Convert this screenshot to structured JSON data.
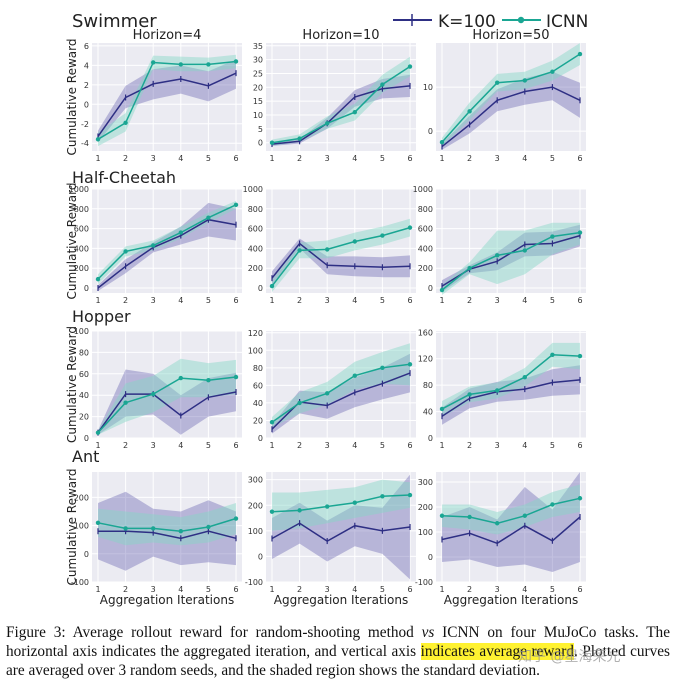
{
  "figure": {
    "legend": [
      "K=100",
      "ICNN"
    ],
    "colors": {
      "k100": "#2e2f84",
      "icnn": "#1aa693",
      "k100_fill": "#6f6bb4",
      "icnn_fill": "#86d8c6",
      "panel_bg": "#ebebf2",
      "grid": "#ffffff"
    },
    "ylabel": "Cumulative Reward",
    "xlabel": "Aggregation Iterations"
  },
  "caption": {
    "part1": "Figure 3: Average rollout reward for random-shooting method ",
    "vs": "vs",
    "part2": " ICNN on four MuJoCo tasks. The horizontal axis indicates the aggregated iteration, and vertical axis ",
    "highlight": "indicates average reward",
    "part3": ". Plotted curves are averaged over 3 random seeds, and the shaded region shows the standard deviation."
  },
  "watermark": "知乎 @星海荣光",
  "chart_data": [
    {
      "type": "line",
      "task": "Swimmer",
      "title": "Horizon=4",
      "row": 0,
      "col": 0,
      "x": [
        1,
        2,
        3,
        4,
        5,
        6
      ],
      "ylim": [
        -4.8,
        6.3
      ],
      "yticks": [
        -4,
        -2,
        0,
        2,
        4,
        6
      ],
      "ytick_labels": [
        "-4",
        "-2",
        "0",
        "2",
        "4",
        "6"
      ],
      "series": [
        {
          "name": "K=100",
          "values": [
            -3.3,
            0.7,
            2.1,
            2.6,
            1.9,
            3.2
          ],
          "lower": [
            -3.9,
            -0.4,
            0.5,
            1.1,
            0.3,
            1.6
          ],
          "upper": [
            -2.7,
            1.9,
            3.6,
            4.0,
            3.4,
            4.6
          ]
        },
        {
          "name": "ICNN",
          "values": [
            -3.6,
            -1.9,
            4.3,
            4.1,
            4.1,
            4.4
          ],
          "lower": [
            -4.3,
            -2.8,
            3.6,
            3.4,
            3.4,
            3.7
          ],
          "upper": [
            -2.9,
            -0.9,
            5.0,
            4.9,
            4.8,
            5.1
          ]
        }
      ]
    },
    {
      "type": "line",
      "task": "Swimmer",
      "title": "Horizon=10",
      "row": 0,
      "col": 1,
      "x": [
        1,
        2,
        3,
        4,
        5,
        6
      ],
      "ylim": [
        -3,
        36
      ],
      "yticks": [
        0,
        5,
        10,
        15,
        20,
        25,
        30,
        35
      ],
      "ytick_labels": [
        "0",
        "5",
        "10",
        "15",
        "20",
        "25",
        "30",
        "35"
      ],
      "series": [
        {
          "name": "K=100",
          "values": [
            -0.5,
            0.5,
            7,
            16.5,
            19.5,
            20.5
          ],
          "lower": [
            -1.2,
            -0.3,
            5,
            13,
            16,
            16.5
          ],
          "upper": [
            0.2,
            1.3,
            9,
            19,
            23,
            24.5
          ]
        },
        {
          "name": "ICNN",
          "values": [
            0,
            1.5,
            7,
            11,
            21,
            27.5
          ],
          "lower": [
            -1.1,
            0.2,
            5,
            8,
            18,
            24
          ],
          "upper": [
            1.1,
            3,
            9.5,
            14,
            24.5,
            31
          ]
        }
      ]
    },
    {
      "type": "line",
      "task": "Swimmer",
      "title": "Horizon=50",
      "row": 0,
      "col": 2,
      "x": [
        1,
        2,
        3,
        4,
        5,
        6
      ],
      "ylim": [
        -4.5,
        20
      ],
      "yticks": [
        0,
        10
      ],
      "ytick_labels": [
        "0",
        "10"
      ],
      "series": [
        {
          "name": "K=100",
          "values": [
            -3.5,
            1.5,
            7,
            9,
            10,
            7
          ],
          "lower": [
            -4.2,
            -0.5,
            4.5,
            6,
            7,
            3
          ],
          "upper": [
            -2.8,
            3.5,
            9.5,
            12,
            13.5,
            11
          ]
        },
        {
          "name": "ICNN",
          "values": [
            -2.5,
            4.5,
            11,
            11.5,
            13.5,
            17.5
          ],
          "lower": [
            -3.5,
            2.5,
            9,
            9.5,
            11.5,
            15
          ],
          "upper": [
            -1.5,
            6.5,
            13,
            13.5,
            16,
            20
          ]
        }
      ]
    },
    {
      "type": "line",
      "task": "Half-Cheetah",
      "title": "",
      "row": 1,
      "col": 0,
      "x": [
        1,
        2,
        3,
        4,
        5,
        6
      ],
      "ylim": [
        -50,
        1000
      ],
      "yticks": [
        0,
        200,
        400,
        600,
        800,
        1000
      ],
      "ytick_labels": [
        "0",
        "200",
        "400",
        "600",
        "800",
        "1000"
      ],
      "series": [
        {
          "name": "K=100",
          "values": [
            0,
            220,
            410,
            530,
            690,
            640
          ],
          "lower": [
            -30,
            150,
            360,
            440,
            520,
            480
          ],
          "upper": [
            30,
            290,
            460,
            620,
            860,
            800
          ]
        },
        {
          "name": "ICNN",
          "values": [
            90,
            370,
            430,
            560,
            710,
            840
          ],
          "lower": [
            40,
            320,
            380,
            500,
            660,
            800
          ],
          "upper": [
            140,
            420,
            480,
            620,
            760,
            880
          ]
        }
      ]
    },
    {
      "type": "line",
      "task": "Half-Cheetah",
      "title": "",
      "row": 1,
      "col": 1,
      "x": [
        1,
        2,
        3,
        4,
        5,
        6
      ],
      "ylim": [
        -50,
        1000
      ],
      "yticks": [
        0,
        200,
        400,
        600,
        800,
        1000
      ],
      "ytick_labels": [
        "0",
        "200",
        "400",
        "600",
        "800",
        "1000"
      ],
      "series": [
        {
          "name": "K=100",
          "values": [
            100,
            450,
            230,
            220,
            210,
            220
          ],
          "lower": [
            30,
            400,
            140,
            120,
            110,
            110
          ],
          "upper": [
            170,
            500,
            320,
            320,
            310,
            330
          ]
        },
        {
          "name": "ICNN",
          "values": [
            20,
            380,
            390,
            470,
            530,
            610
          ],
          "lower": [
            -40,
            300,
            300,
            380,
            440,
            520
          ],
          "upper": [
            80,
            460,
            480,
            560,
            620,
            700
          ]
        }
      ]
    },
    {
      "type": "line",
      "task": "Half-Cheetah",
      "title": "",
      "row": 1,
      "col": 2,
      "x": [
        1,
        2,
        3,
        4,
        5,
        6
      ],
      "ylim": [
        -50,
        1000
      ],
      "yticks": [
        0,
        200,
        400,
        600,
        800,
        1000
      ],
      "ytick_labels": [
        "0",
        "200",
        "400",
        "600",
        "800",
        "1000"
      ],
      "series": [
        {
          "name": "K=100",
          "values": [
            20,
            190,
            270,
            440,
            450,
            530
          ],
          "lower": [
            -40,
            150,
            180,
            320,
            330,
            420
          ],
          "upper": [
            80,
            230,
            360,
            560,
            570,
            640
          ]
        },
        {
          "name": "ICNN",
          "values": [
            -20,
            200,
            330,
            380,
            520,
            560
          ],
          "lower": [
            -70,
            140,
            40,
            140,
            340,
            440
          ],
          "upper": [
            30,
            260,
            580,
            580,
            660,
            660
          ]
        }
      ]
    },
    {
      "type": "line",
      "task": "Hopper",
      "title": "",
      "row": 2,
      "col": 0,
      "x": [
        1,
        2,
        3,
        4,
        5,
        6
      ],
      "ylim": [
        0,
        100
      ],
      "yticks": [
        0,
        20,
        40,
        60,
        80,
        100
      ],
      "ytick_labels": [
        "0",
        "20",
        "40",
        "60",
        "80",
        "100"
      ],
      "series": [
        {
          "name": "K=100",
          "values": [
            5,
            41,
            41,
            21,
            38,
            43
          ],
          "lower": [
            3,
            20,
            22,
            3,
            20,
            25
          ],
          "upper": [
            7,
            64,
            60,
            40,
            56,
            61
          ]
        },
        {
          "name": "ICNN",
          "values": [
            5,
            33,
            41,
            56,
            54,
            57
          ],
          "lower": [
            3,
            15,
            24,
            38,
            38,
            41
          ],
          "upper": [
            7,
            51,
            58,
            74,
            70,
            73
          ]
        }
      ]
    },
    {
      "type": "line",
      "task": "Hopper",
      "title": "",
      "row": 2,
      "col": 1,
      "x": [
        1,
        2,
        3,
        4,
        5,
        6
      ],
      "ylim": [
        0,
        122
      ],
      "yticks": [
        0,
        20,
        40,
        60,
        80,
        100,
        120
      ],
      "ytick_labels": [
        "0",
        "20",
        "40",
        "60",
        "80",
        "100",
        "120"
      ],
      "series": [
        {
          "name": "K=100",
          "values": [
            10,
            41,
            37,
            52,
            62,
            74
          ],
          "lower": [
            5,
            28,
            22,
            35,
            44,
            52
          ],
          "upper": [
            15,
            54,
            52,
            69,
            80,
            96
          ]
        },
        {
          "name": "ICNN",
          "values": [
            18,
            40,
            51,
            71,
            80,
            84
          ],
          "lower": [
            12,
            28,
            38,
            55,
            62,
            60
          ],
          "upper": [
            24,
            52,
            64,
            87,
            98,
            108
          ]
        }
      ]
    },
    {
      "type": "line",
      "task": "Hopper",
      "title": "",
      "row": 2,
      "col": 2,
      "x": [
        1,
        2,
        3,
        4,
        5,
        6
      ],
      "ylim": [
        0,
        162
      ],
      "yticks": [
        0,
        40,
        80,
        120,
        160
      ],
      "ytick_labels": [
        "0",
        "40",
        "80",
        "120",
        "160"
      ],
      "series": [
        {
          "name": "K=100",
          "values": [
            33,
            60,
            70,
            74,
            84,
            88
          ],
          "lower": [
            20,
            45,
            55,
            58,
            64,
            66
          ],
          "upper": [
            46,
            75,
            85,
            90,
            104,
            110
          ]
        },
        {
          "name": "ICNN",
          "values": [
            44,
            66,
            72,
            92,
            126,
            124
          ],
          "lower": [
            32,
            54,
            60,
            78,
            108,
            104
          ],
          "upper": [
            56,
            78,
            84,
            106,
            144,
            144
          ]
        }
      ]
    },
    {
      "type": "line",
      "task": "Ant",
      "title": "",
      "row": 3,
      "col": 0,
      "x": [
        1,
        2,
        3,
        4,
        5,
        6
      ],
      "ylim": [
        -100,
        290
      ],
      "yticks": [
        -100,
        0,
        100,
        200
      ],
      "ytick_labels": [
        "-100",
        "0",
        "100",
        "200"
      ],
      "series": [
        {
          "name": "K=100",
          "values": [
            80,
            80,
            75,
            55,
            80,
            55
          ],
          "lower": [
            -20,
            -60,
            -10,
            -40,
            -30,
            -40
          ],
          "upper": [
            180,
            220,
            160,
            150,
            190,
            150
          ]
        },
        {
          "name": "ICNN",
          "values": [
            110,
            90,
            90,
            80,
            95,
            125
          ],
          "lower": [
            60,
            30,
            40,
            30,
            40,
            70
          ],
          "upper": [
            160,
            150,
            140,
            130,
            150,
            180
          ]
        }
      ]
    },
    {
      "type": "line",
      "task": "Ant",
      "title": "",
      "row": 3,
      "col": 1,
      "x": [
        1,
        2,
        3,
        4,
        5,
        6
      ],
      "ylim": [
        -100,
        330
      ],
      "yticks": [
        -100,
        0,
        100,
        200,
        300
      ],
      "ytick_labels": [
        "-100",
        "0",
        "100",
        "200",
        "300"
      ],
      "series": [
        {
          "name": "K=100",
          "values": [
            70,
            130,
            60,
            120,
            100,
            115
          ],
          "lower": [
            -10,
            50,
            -20,
            40,
            10,
            -90
          ],
          "upper": [
            150,
            210,
            140,
            200,
            190,
            320
          ]
        },
        {
          "name": "ICNN",
          "values": [
            175,
            180,
            195,
            210,
            235,
            240
          ],
          "lower": [
            100,
            110,
            130,
            150,
            170,
            190
          ],
          "upper": [
            250,
            250,
            260,
            270,
            300,
            290
          ]
        }
      ]
    },
    {
      "type": "line",
      "task": "Ant",
      "title": "",
      "row": 3,
      "col": 2,
      "x": [
        1,
        2,
        3,
        4,
        5,
        6
      ],
      "ylim": [
        -100,
        340
      ],
      "yticks": [
        -100,
        0,
        100,
        200,
        300
      ],
      "ytick_labels": [
        "-100",
        "0",
        "100",
        "200",
        "300"
      ],
      "series": [
        {
          "name": "K=100",
          "values": [
            70,
            95,
            55,
            125,
            65,
            160
          ],
          "lower": [
            -20,
            -10,
            -40,
            -30,
            -60,
            -20
          ],
          "upper": [
            160,
            200,
            150,
            280,
            190,
            340
          ]
        },
        {
          "name": "ICNN",
          "values": [
            165,
            160,
            135,
            165,
            210,
            235
          ],
          "lower": [
            120,
            110,
            90,
            120,
            160,
            180
          ],
          "upper": [
            210,
            210,
            180,
            210,
            260,
            290
          ]
        }
      ]
    }
  ]
}
